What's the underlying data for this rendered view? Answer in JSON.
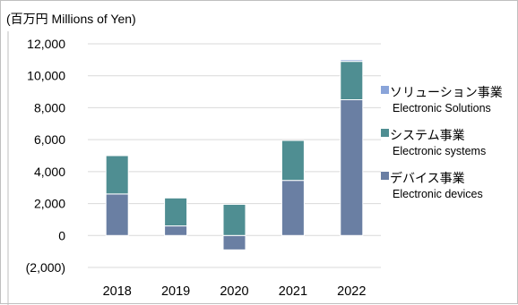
{
  "chart_data": {
    "type": "bar",
    "stacked": true,
    "unit_label": "(百万円 Millions of Yen)",
    "categories": [
      "2018",
      "2019",
      "2020",
      "2021",
      "2022"
    ],
    "ylim": [
      -2000,
      12000
    ],
    "yticks": [
      {
        "value": 12000,
        "label": "12,000"
      },
      {
        "value": 10000,
        "label": "10,000"
      },
      {
        "value": 8000,
        "label": "8,000"
      },
      {
        "value": 6000,
        "label": "6,000"
      },
      {
        "value": 4000,
        "label": "4,000"
      },
      {
        "value": 2000,
        "label": "2,000"
      },
      {
        "value": 0,
        "label": "0"
      },
      {
        "value": -2000,
        "label": "(2,000)"
      }
    ],
    "grid": true,
    "legend_position": "right",
    "series": [
      {
        "name_jp": "デバイス事業",
        "name_en": "Electronic devices",
        "color": "#6a7fa3",
        "values": [
          2600,
          600,
          -900,
          3450,
          8500
        ]
      },
      {
        "name_jp": "システム事業",
        "name_en": "Electronic systems",
        "color": "#4f8e92",
        "values": [
          2400,
          1750,
          1950,
          2500,
          2400
        ]
      },
      {
        "name_jp": "ソリューション事業",
        "name_en": "Electronic Solutions",
        "color": "#8aa4d9",
        "values": [
          0,
          0,
          0,
          0,
          100
        ]
      }
    ],
    "legend_order": [
      2,
      1,
      0
    ]
  }
}
